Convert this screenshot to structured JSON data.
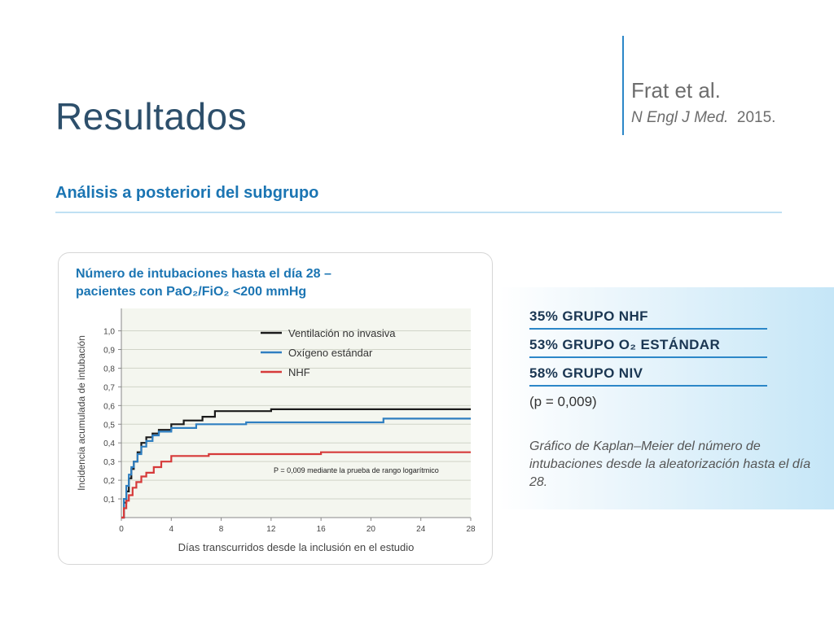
{
  "slide": {
    "title": "Resultados",
    "citation": {
      "authors": "Frat et al.",
      "journal": "N Engl J Med.",
      "year": "2015."
    },
    "subtitle": "Análisis a posteriori del subgrupo"
  },
  "results": {
    "stats": [
      "35% GRUPO NHF",
      "53% GRUPO O₂ ESTÁNDAR",
      "58% GRUPO NIV"
    ],
    "p_value": "(p = 0,009)",
    "caption": "Gráfico de Kaplan–Meier del número de intubaciones desde la aleatorización hasta el día 28."
  },
  "chart_data": {
    "type": "line",
    "step": true,
    "title_line1": "Número de intubaciones hasta el día 28 –",
    "title_line2": "pacientes con PaO₂/FiO₂ <200 mmHg",
    "xlabel": "Días transcurridos desde la inclusión en el estudio",
    "ylabel": "Incidencia acumulada de intubación",
    "xlim": [
      0,
      28
    ],
    "ylim": [
      0,
      1.0
    ],
    "xticks": [
      0,
      4,
      8,
      12,
      16,
      20,
      24,
      28
    ],
    "xtick_labels": [
      "0",
      "4",
      "8",
      "12",
      "16",
      "20",
      "24",
      "28"
    ],
    "yticks": [
      0.1,
      0.2,
      0.3,
      0.4,
      0.5,
      0.6,
      0.7,
      0.8,
      0.9,
      1.0
    ],
    "ytick_labels": [
      "0,1",
      "0,2",
      "0,3",
      "0,4",
      "0,5",
      "0,6",
      "0,7",
      "0,8",
      "0,9",
      "1,0"
    ],
    "grid": true,
    "legend_position": "top-right",
    "annotation": "P = 0,009 mediante la prueba de rango logarítmico",
    "series": [
      {
        "name": "Ventilación no invasiva",
        "color": "#1a1a1a",
        "x": [
          0,
          0.2,
          0.4,
          0.6,
          0.8,
          1.0,
          1.3,
          1.6,
          2.0,
          2.5,
          3.0,
          4.0,
          5.0,
          6.5,
          7.5,
          9.0,
          12.0,
          28.0
        ],
        "y": [
          0,
          0.08,
          0.14,
          0.21,
          0.26,
          0.3,
          0.35,
          0.4,
          0.43,
          0.45,
          0.47,
          0.5,
          0.52,
          0.54,
          0.57,
          0.57,
          0.58,
          0.58
        ]
      },
      {
        "name": "Oxígeno estándar",
        "color": "#2f7fc1",
        "x": [
          0,
          0.2,
          0.4,
          0.6,
          0.8,
          1.0,
          1.3,
          1.6,
          2.0,
          2.5,
          3.0,
          4.0,
          6.0,
          8.0,
          10.0,
          21.0,
          28.0
        ],
        "y": [
          0,
          0.1,
          0.17,
          0.23,
          0.27,
          0.3,
          0.34,
          0.38,
          0.41,
          0.44,
          0.46,
          0.48,
          0.5,
          0.5,
          0.51,
          0.53,
          0.53
        ]
      },
      {
        "name": "NHF",
        "color": "#d63a3a",
        "x": [
          0,
          0.2,
          0.4,
          0.6,
          0.9,
          1.2,
          1.6,
          2.0,
          2.6,
          3.2,
          4.0,
          7.0,
          16.0,
          28.0
        ],
        "y": [
          0,
          0.05,
          0.09,
          0.12,
          0.16,
          0.19,
          0.22,
          0.24,
          0.27,
          0.3,
          0.33,
          0.34,
          0.35,
          0.35
        ]
      }
    ]
  }
}
